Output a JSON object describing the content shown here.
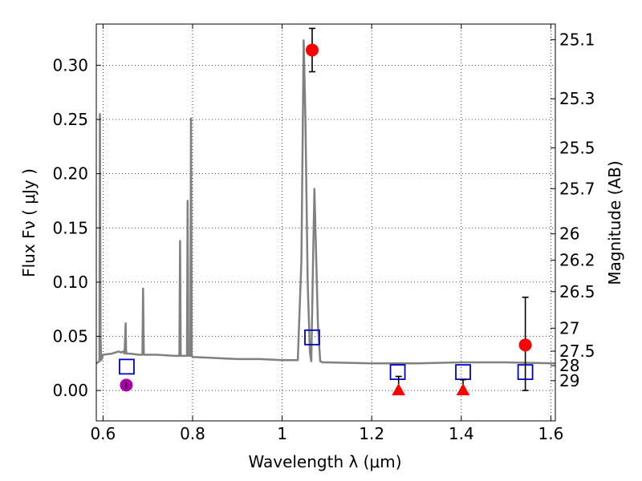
{
  "chart_data": {
    "type": "scatter",
    "xlabel": "Wavelength  λ (μm)",
    "ylabel": "Flux  Fν  ( μJy )",
    "ylabel_right": "Magnitude (AB)",
    "xlim": [
      0.585,
      1.61
    ],
    "ylim": [
      -0.028,
      0.338
    ],
    "grid": true,
    "x_ticks": [
      {
        "value": 0.6,
        "label": "0.6"
      },
      {
        "value": 0.8,
        "label": "0.8"
      },
      {
        "value": 1.0,
        "label": "1"
      },
      {
        "value": 1.2,
        "label": "1.2"
      },
      {
        "value": 1.4,
        "label": "1.4"
      },
      {
        "value": 1.6,
        "label": "1.6"
      }
    ],
    "y_ticks": [
      {
        "value": 0.0,
        "label": "0.00"
      },
      {
        "value": 0.05,
        "label": "0.05"
      },
      {
        "value": 0.1,
        "label": "0.10"
      },
      {
        "value": 0.15,
        "label": "0.15"
      },
      {
        "value": 0.2,
        "label": "0.20"
      },
      {
        "value": 0.25,
        "label": "0.25"
      },
      {
        "value": 0.3,
        "label": "0.30"
      }
    ],
    "right_ticks": [
      {
        "flux": 0.3235,
        "label": "25.1"
      },
      {
        "flux": 0.2691,
        "label": "25.3"
      },
      {
        "flux": 0.2238,
        "label": "25.5"
      },
      {
        "flux": 0.1862,
        "label": "25.7"
      },
      {
        "flux": 0.1445,
        "label": "26"
      },
      {
        "flux": 0.1202,
        "label": "26.2"
      },
      {
        "flux": 0.0912,
        "label": "26.5"
      },
      {
        "flux": 0.0575,
        "label": "27"
      },
      {
        "flux": 0.0363,
        "label": "27.5"
      },
      {
        "flux": 0.0229,
        "label": "28"
      },
      {
        "flux": 0.0091,
        "label": "29"
      }
    ],
    "series": [
      {
        "kind": "model_spectrum",
        "color": "#808080",
        "x": [
          0.585,
          0.592,
          0.593,
          0.5945,
          0.596,
          0.6,
          0.62,
          0.635,
          0.64,
          0.645,
          0.648,
          0.6505,
          0.6515,
          0.6525,
          0.655,
          0.66,
          0.68,
          0.686,
          0.688,
          0.6895,
          0.691,
          0.694,
          0.72,
          0.76,
          0.768,
          0.7705,
          0.772,
          0.7735,
          0.776,
          0.78,
          0.785,
          0.7875,
          0.789,
          0.7905,
          0.793,
          0.795,
          0.7965,
          0.798,
          0.8,
          0.85,
          0.9,
          0.95,
          1.0,
          1.02,
          1.035,
          1.043,
          1.048,
          1.052,
          1.057,
          1.062,
          1.065,
          1.069,
          1.072,
          1.075,
          1.08,
          1.085,
          1.09,
          1.1,
          1.2,
          1.3,
          1.4,
          1.5,
          1.61
        ],
        "y": [
          0.025,
          0.027,
          0.255,
          0.05,
          0.028,
          0.033,
          0.034,
          0.036,
          0.035,
          0.036,
          0.034,
          0.062,
          0.037,
          0.034,
          0.034,
          0.034,
          0.033,
          0.033,
          0.033,
          0.094,
          0.033,
          0.033,
          0.033,
          0.032,
          0.032,
          0.032,
          0.138,
          0.032,
          0.032,
          0.032,
          0.032,
          0.032,
          0.175,
          0.032,
          0.032,
          0.032,
          0.251,
          0.032,
          0.031,
          0.03,
          0.029,
          0.029,
          0.028,
          0.028,
          0.028,
          0.12,
          0.323,
          0.25,
          0.1,
          0.035,
          0.027,
          0.12,
          0.186,
          0.14,
          0.06,
          0.027,
          0.026,
          0.026,
          0.025,
          0.025,
          0.026,
          0.026,
          0.025
        ]
      },
      {
        "kind": "model_photometry",
        "marker": "open-square",
        "color": "#0000cc",
        "x": [
          0.653,
          1.067,
          1.258,
          1.404,
          1.543
        ],
        "y": [
          0.022,
          0.049,
          0.017,
          0.017,
          0.017
        ]
      },
      {
        "kind": "detections",
        "marker": "circle",
        "color": "#ff0000",
        "x": [
          1.067,
          1.543
        ],
        "y": [
          0.314,
          0.042
        ],
        "yerr_low": [
          0.02,
          0.042
        ],
        "yerr_high": [
          0.02,
          0.044
        ]
      },
      {
        "kind": "detection",
        "marker": "circle",
        "color": "#aa00aa",
        "x": [
          0.652
        ],
        "y": [
          0.005
        ],
        "yerr_low": [
          0.003
        ],
        "yerr_high": [
          0.003
        ]
      },
      {
        "kind": "upper_limits",
        "marker": "triangle",
        "color": "#ff0000",
        "x": [
          1.26,
          1.404
        ],
        "y": [
          0.0,
          0.0
        ],
        "yerr_low": [
          0.0,
          0.0
        ],
        "yerr_high": [
          0.013,
          0.01
        ]
      }
    ]
  }
}
